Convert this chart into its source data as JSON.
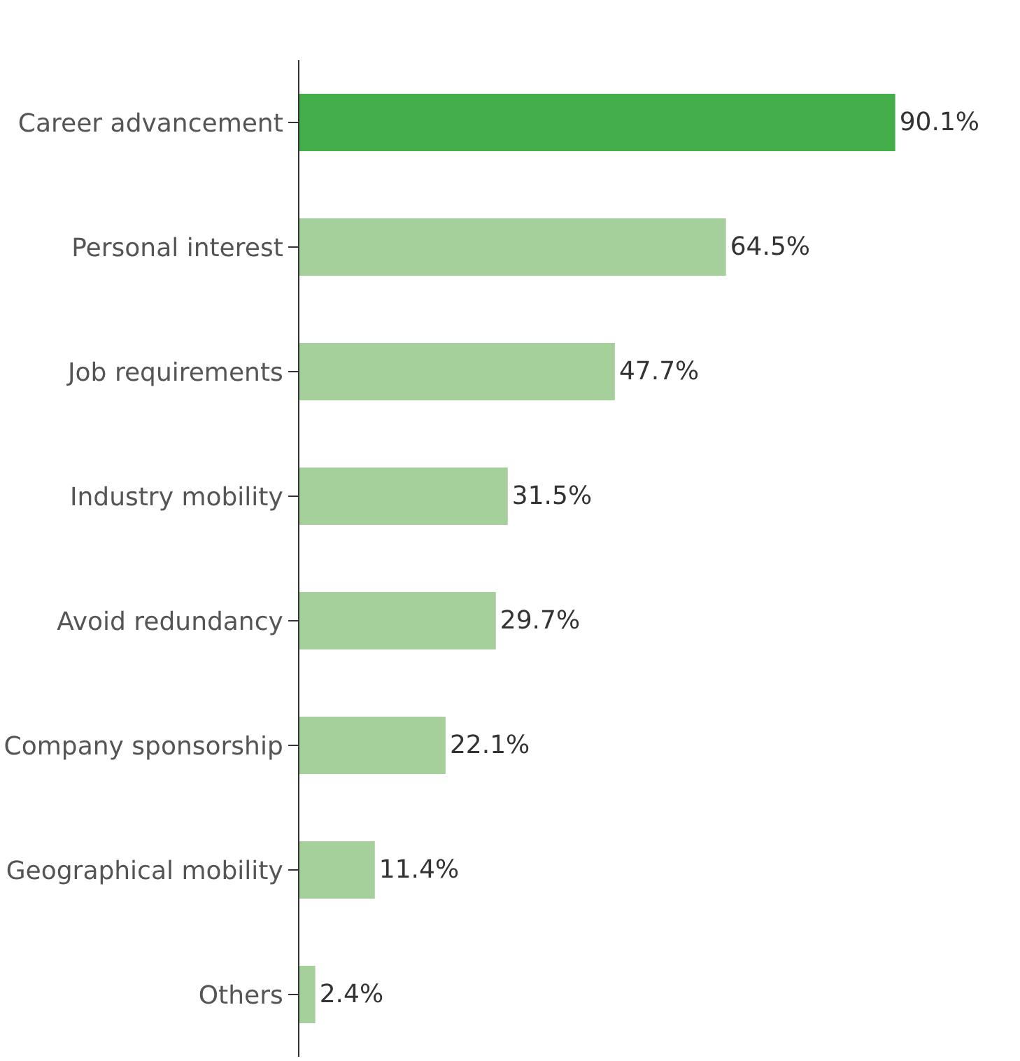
{
  "chart_data": {
    "type": "bar",
    "orientation": "horizontal",
    "categories": [
      "Career advancement",
      "Personal interest",
      "Job requirements",
      "Industry mobility",
      "Avoid redundancy",
      "Company sponsorship",
      "Geographical mobility",
      "Others"
    ],
    "values": [
      90.1,
      64.5,
      47.7,
      31.5,
      29.7,
      22.1,
      11.4,
      2.4
    ],
    "value_labels": [
      "90.1%",
      "64.5%",
      "47.7%",
      "31.5%",
      "29.7%",
      "22.1%",
      "11.4%",
      "2.4%"
    ],
    "colors": [
      "#43ae4a",
      "#a5cf9b",
      "#a5cf9b",
      "#a5cf9b",
      "#a5cf9b",
      "#a5cf9b",
      "#a5cf9b",
      "#a5cf9b"
    ],
    "tick_labels": "y"
  }
}
